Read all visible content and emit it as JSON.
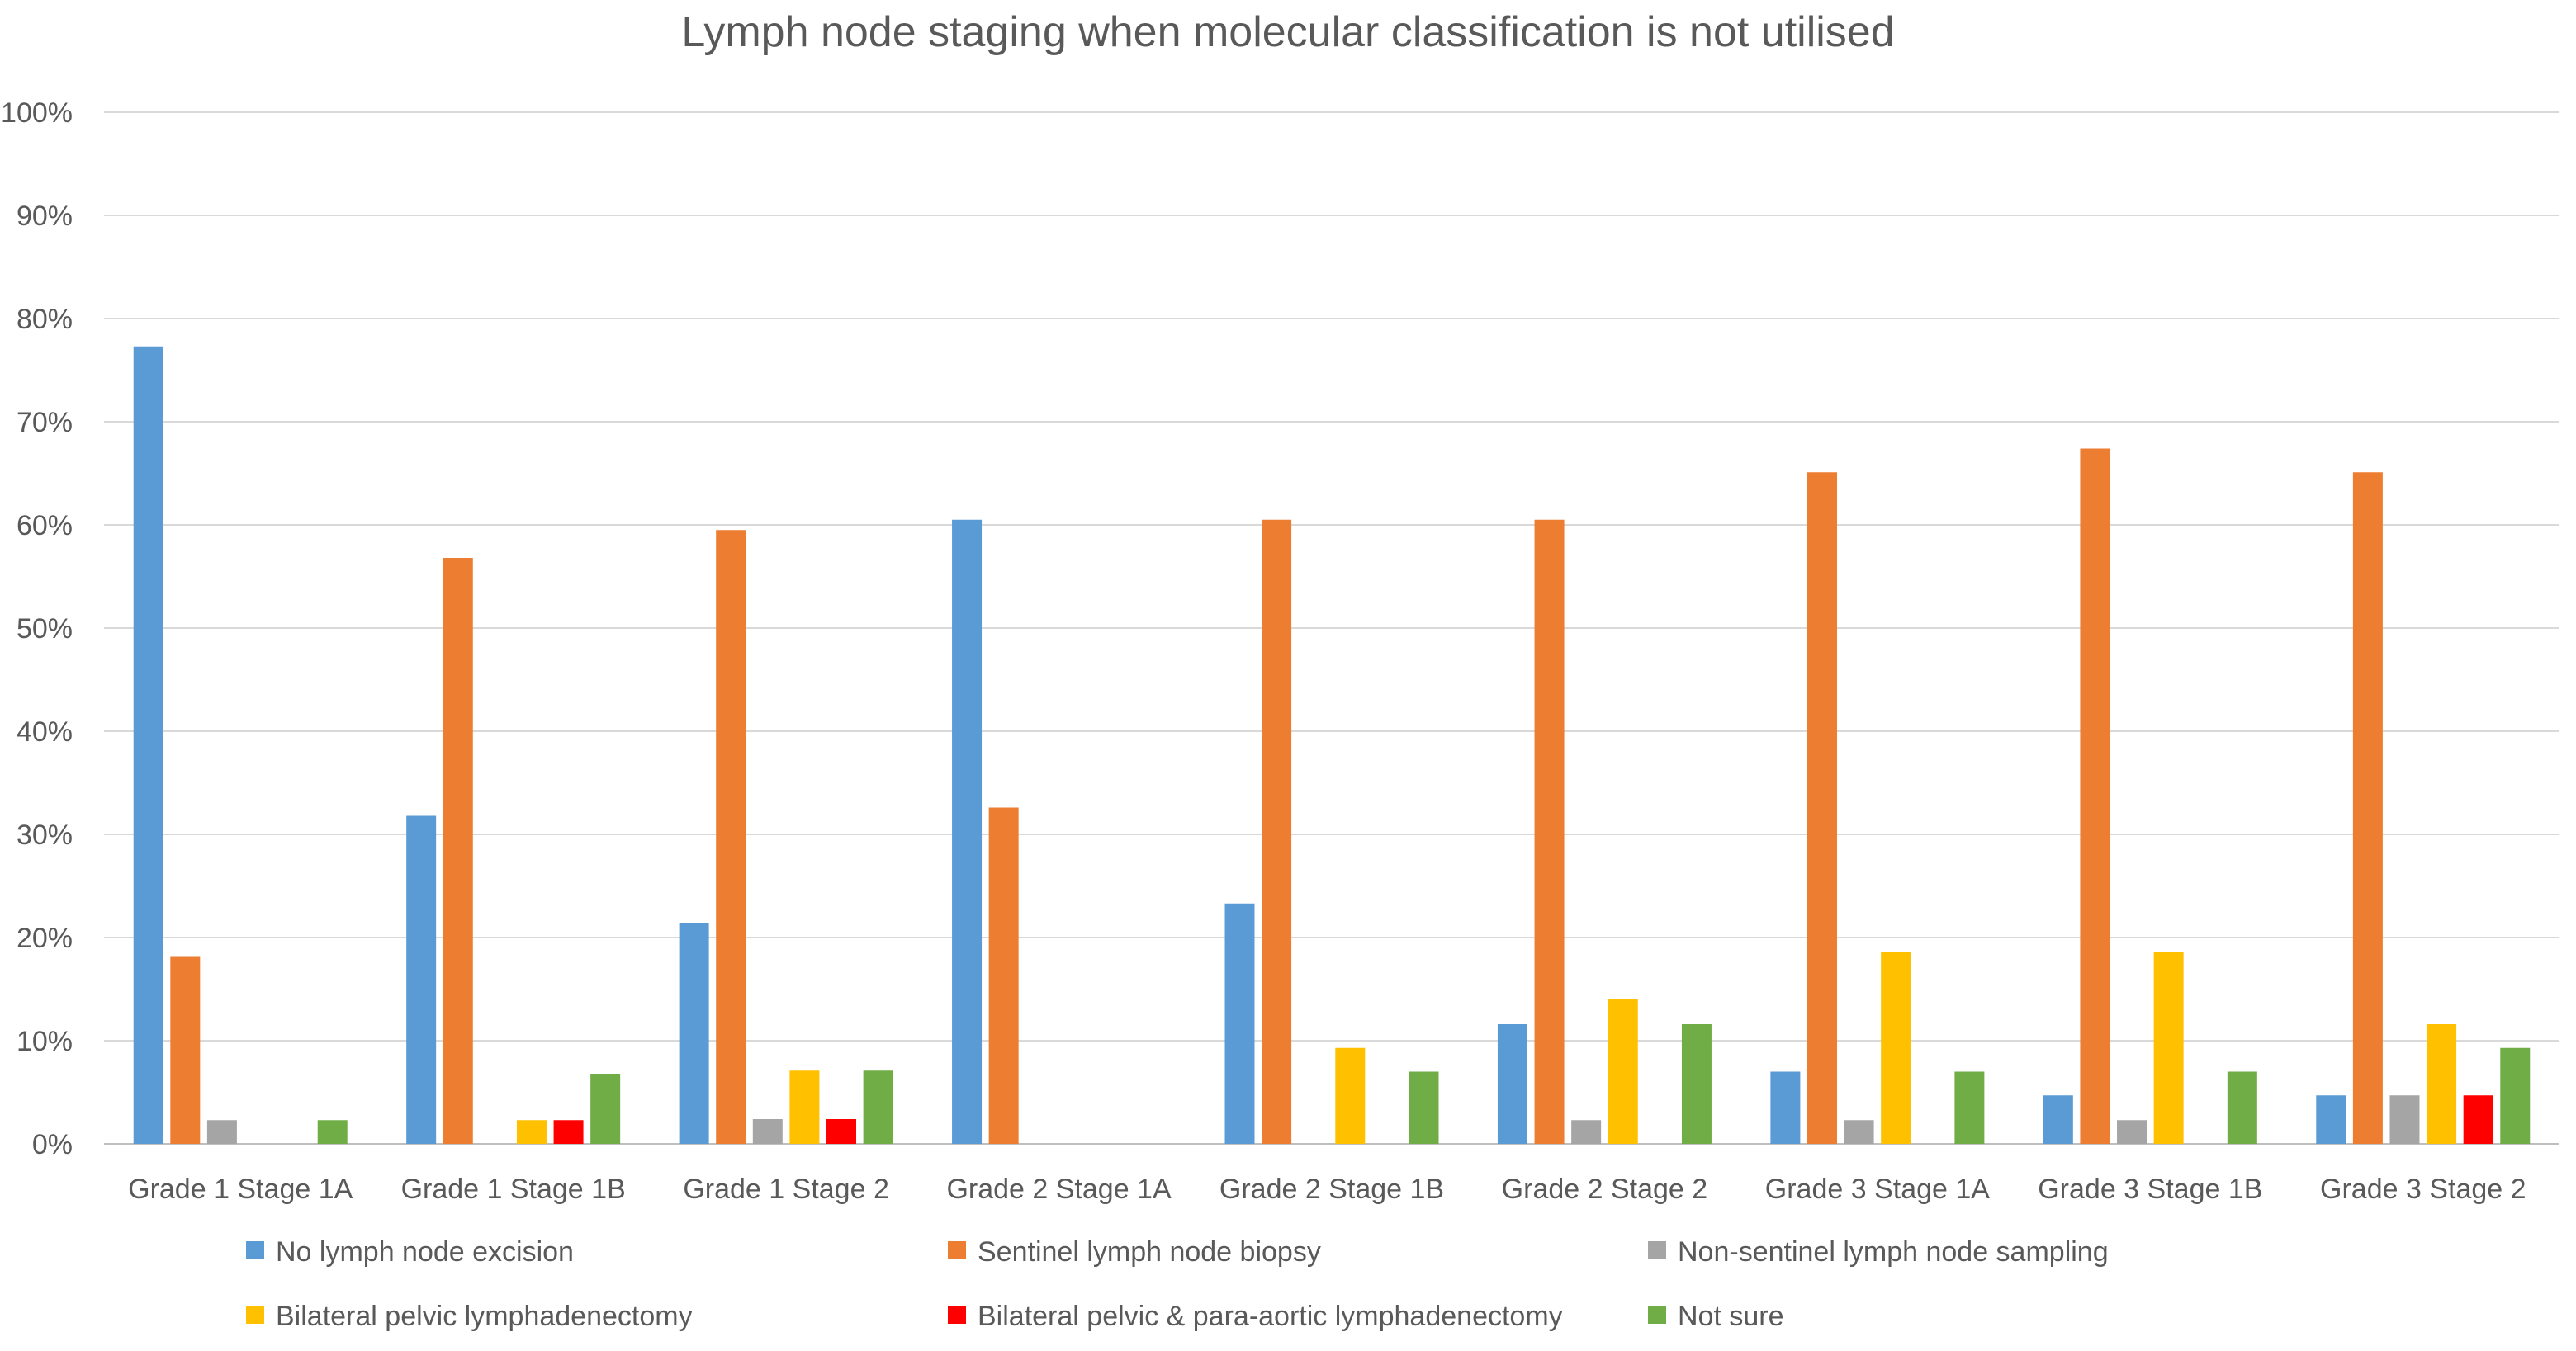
{
  "chart_data": {
    "type": "bar",
    "title": "Lymph node staging when molecular classification is not utilised",
    "xlabel": "",
    "ylabel": "",
    "ylim": [
      0,
      100
    ],
    "y_ticks": [
      "0%",
      "10%",
      "20%",
      "30%",
      "40%",
      "50%",
      "60%",
      "70%",
      "80%",
      "90%",
      "100%"
    ],
    "grid": true,
    "legend_position": "bottom",
    "categories": [
      "Grade 1 Stage 1A",
      "Grade 1 Stage 1B",
      "Grade 1  Stage 2",
      "Grade 2 Stage 1A",
      "Grade 2 Stage 1B",
      "Grade 2 Stage 2",
      "Grade 3 Stage 1A",
      "Grade 3 Stage 1B",
      "Grade 3 Stage 2"
    ],
    "series": [
      {
        "name": "No lymph node excision",
        "color": "#5b9bd5",
        "values": [
          77.3,
          31.8,
          21.4,
          60.5,
          23.3,
          11.6,
          7.0,
          4.7,
          4.7
        ]
      },
      {
        "name": "Sentinel lymph node biopsy",
        "color": "#ed7d31",
        "values": [
          18.2,
          56.8,
          59.5,
          32.6,
          60.5,
          60.5,
          65.1,
          67.4,
          65.1
        ]
      },
      {
        "name": "Non-sentinel lymph node sampling",
        "color": "#a5a5a5",
        "values": [
          2.3,
          0,
          2.4,
          0,
          0,
          2.3,
          2.3,
          2.3,
          4.7
        ]
      },
      {
        "name": "Bilateral pelvic lymphadenectomy",
        "color": "#ffc000",
        "values": [
          0,
          2.3,
          7.1,
          0,
          9.3,
          14.0,
          18.6,
          18.6,
          11.6
        ]
      },
      {
        "name": "Bilateral pelvic & para-aortic lymphadenectomy",
        "color": "#ff0000",
        "values": [
          0,
          2.3,
          2.4,
          0,
          0,
          0,
          0,
          0,
          4.7
        ]
      },
      {
        "name": "Not sure",
        "color": "#70ad47",
        "values": [
          2.3,
          6.8,
          7.1,
          0,
          7.0,
          11.6,
          7.0,
          7.0,
          9.3
        ]
      }
    ]
  }
}
